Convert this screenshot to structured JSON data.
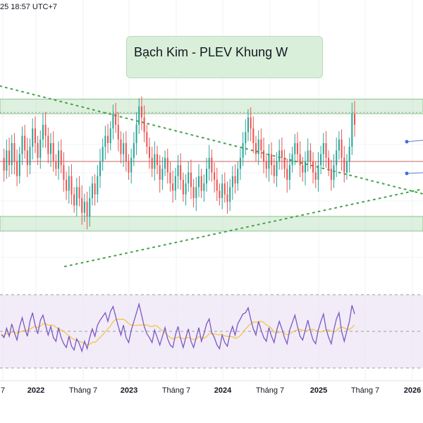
{
  "header": {
    "timestamp": "25 18:57 UTC+7"
  },
  "annotation": {
    "title": "Bạch Kim - PLEV Khung W"
  },
  "colors": {
    "up_candle": "#26a69a",
    "down_candle": "#ef5350",
    "trendline": "#43a047",
    "zone_fill": "#c8e6c9",
    "rsi_line": "#7e57c2",
    "rsi_ma": "#f5c542",
    "rsi_band": "#ede7f6",
    "resistance_line": "#c96565"
  },
  "chart_data": {
    "type": "candlestick",
    "timeframe": "W",
    "x_axis": {
      "labels": [
        "7",
        "2022",
        "Tháng 7",
        "2023",
        "Tháng 7",
        "2024",
        "Tháng 7",
        "2025",
        "Tháng 7",
        "2026"
      ],
      "label_kinds": [
        "month",
        "year",
        "month",
        "year",
        "month",
        "year",
        "month",
        "year",
        "month",
        "year"
      ]
    },
    "price_series_normalized": [
      0.62,
      0.55,
      0.66,
      0.58,
      0.7,
      0.6,
      0.52,
      0.64,
      0.74,
      0.66,
      0.58,
      0.68,
      0.78,
      0.7,
      0.62,
      0.72,
      0.8,
      0.74,
      0.64,
      0.7,
      0.6,
      0.56,
      0.66,
      0.58,
      0.5,
      0.44,
      0.52,
      0.42,
      0.36,
      0.46,
      0.4,
      0.32,
      0.38,
      0.3,
      0.4,
      0.48,
      0.42,
      0.52,
      0.6,
      0.68,
      0.74,
      0.7,
      0.78,
      0.86,
      0.8,
      0.72,
      0.64,
      0.7,
      0.6,
      0.54,
      0.62,
      0.7,
      0.8,
      0.9,
      0.84,
      0.76,
      0.68,
      0.62,
      0.56,
      0.64,
      0.58,
      0.5,
      0.56,
      0.62,
      0.54,
      0.48,
      0.44,
      0.52,
      0.58,
      0.5,
      0.42,
      0.48,
      0.54,
      0.46,
      0.4,
      0.46,
      0.52,
      0.44,
      0.48,
      0.56,
      0.62,
      0.54,
      0.5,
      0.44,
      0.4,
      0.48,
      0.42,
      0.38,
      0.46,
      0.52,
      0.48,
      0.56,
      0.62,
      0.7,
      0.76,
      0.84,
      0.78,
      0.7,
      0.64,
      0.72,
      0.66,
      0.6,
      0.56,
      0.64,
      0.58,
      0.52,
      0.6,
      0.66,
      0.62,
      0.56,
      0.5,
      0.58,
      0.64,
      0.7,
      0.64,
      0.58,
      0.54,
      0.6,
      0.66,
      0.6,
      0.54,
      0.5,
      0.58,
      0.64,
      0.7,
      0.62,
      0.56,
      0.5,
      0.58,
      0.66,
      0.72,
      0.62,
      0.54,
      0.6,
      0.68,
      0.86,
      0.8
    ],
    "rsi_series_normalized": [
      0.45,
      0.4,
      0.55,
      0.42,
      0.62,
      0.48,
      0.36,
      0.58,
      0.72,
      0.55,
      0.42,
      0.66,
      0.8,
      0.6,
      0.46,
      0.68,
      0.76,
      0.6,
      0.44,
      0.58,
      0.4,
      0.34,
      0.56,
      0.4,
      0.3,
      0.24,
      0.42,
      0.26,
      0.2,
      0.38,
      0.3,
      0.18,
      0.34,
      0.22,
      0.4,
      0.54,
      0.42,
      0.6,
      0.68,
      0.74,
      0.8,
      0.66,
      0.82,
      0.9,
      0.74,
      0.58,
      0.44,
      0.6,
      0.4,
      0.32,
      0.52,
      0.66,
      0.8,
      0.94,
      0.76,
      0.58,
      0.46,
      0.4,
      0.32,
      0.52,
      0.4,
      0.28,
      0.42,
      0.56,
      0.38,
      0.28,
      0.24,
      0.44,
      0.58,
      0.38,
      0.24,
      0.4,
      0.54,
      0.34,
      0.24,
      0.4,
      0.56,
      0.34,
      0.46,
      0.62,
      0.7,
      0.48,
      0.4,
      0.28,
      0.22,
      0.44,
      0.32,
      0.26,
      0.46,
      0.58,
      0.44,
      0.62,
      0.7,
      0.78,
      0.8,
      0.88,
      0.7,
      0.54,
      0.44,
      0.66,
      0.52,
      0.4,
      0.34,
      0.56,
      0.42,
      0.32,
      0.52,
      0.66,
      0.54,
      0.4,
      0.3,
      0.52,
      0.64,
      0.76,
      0.58,
      0.42,
      0.36,
      0.52,
      0.68,
      0.5,
      0.36,
      0.3,
      0.52,
      0.66,
      0.78,
      0.54,
      0.4,
      0.3,
      0.52,
      0.7,
      0.8,
      0.5,
      0.34,
      0.5,
      0.66,
      0.92,
      0.78
    ],
    "support_zone": [
      0.22,
      0.3
    ],
    "resistance_zone": [
      0.86,
      0.94
    ],
    "midline": 0.6
  }
}
